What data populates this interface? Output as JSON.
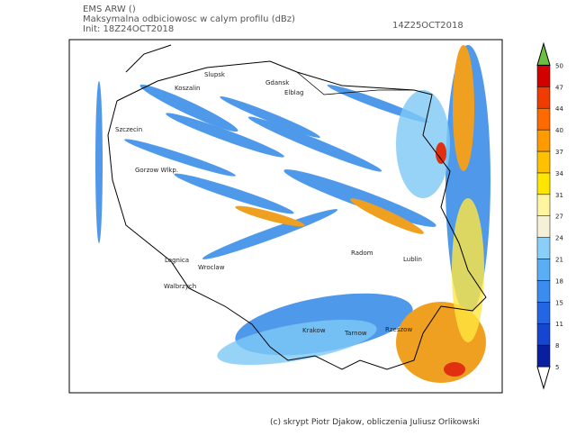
{
  "header": {
    "model": "EMS ARW ()",
    "field": "Maksymalna odbiciowosc w calym profilu (dBz)",
    "init": "Init: 18Z24OCT2018",
    "valid": "14Z25OCT2018"
  },
  "cities": [
    "Slupsk",
    "Koszalin",
    "Gdansk",
    "Elblag",
    "Szczecin",
    "Gorzow Wlkp.",
    "Legnica",
    "Wroclaw",
    "Walbrzych",
    "Radom",
    "Lublin",
    "Krakow",
    "Tarnow",
    "Rzeszow"
  ],
  "colorbar": {
    "labels": [
      "5",
      "8",
      "11",
      "15",
      "18",
      "21",
      "24",
      "27",
      "31",
      "34",
      "37",
      "40",
      "44",
      "47",
      "50"
    ]
  },
  "footer": "(c) skrypt Piotr Djakow, obliczenia Juliusz Orlikowski"
}
